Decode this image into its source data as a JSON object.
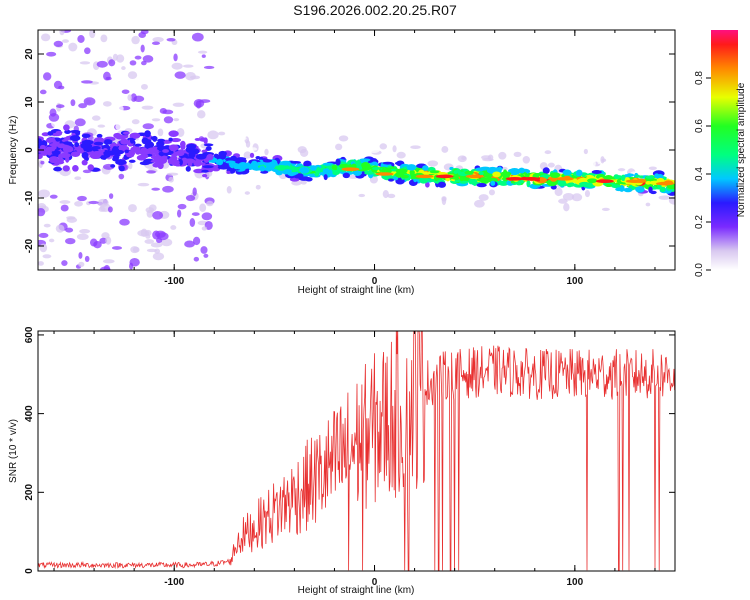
{
  "title": "S196.2026.002.20.25.R07",
  "chart_data": [
    {
      "type": "heatmap",
      "xlabel": "Height of straight line (km)",
      "ylabel": "Frequency (Hz)",
      "xlim": [
        -168,
        150
      ],
      "ylim": [
        -25,
        25
      ],
      "xticks": [
        -100,
        0,
        100
      ],
      "yticks": [
        -20,
        -10,
        0,
        10,
        20
      ],
      "description_series": {
        "name": "Doppler ridge center (Hz)",
        "x": [
          -165,
          -140,
          -120,
          -100,
          -85,
          -70,
          -50,
          -30,
          -15,
          -5,
          5,
          20,
          40,
          60,
          80,
          100,
          120,
          150
        ],
        "y": [
          0.5,
          0,
          0,
          -0.5,
          -1.5,
          -3,
          -3.5,
          -4.5,
          -3.5,
          -3.5,
          -4.5,
          -5,
          -5.5,
          -5.5,
          -6,
          -6,
          -6.5,
          -7
        ]
      },
      "colorbar": {
        "label": "Normalized spectral amplitude",
        "range": [
          0,
          1
        ],
        "ticks": [
          "0.0",
          "0.2",
          "0.4",
          "0.6",
          "0.8"
        ]
      }
    },
    {
      "type": "line",
      "xlabel": "Height of straight line (km)",
      "ylabel": "SNR (10 * v/v)",
      "xlim": [
        -168,
        150
      ],
      "ylim": [
        0,
        610
      ],
      "xticks": [
        -100,
        0,
        100
      ],
      "yticks": [
        0,
        200,
        400,
        600
      ],
      "series": [
        {
          "name": "SNR",
          "x": [
            -168,
            -140,
            -110,
            -90,
            -80,
            -72,
            -68,
            -60,
            -50,
            -40,
            -30,
            -20,
            -10,
            0,
            10,
            20,
            25,
            30,
            40,
            50,
            60,
            80,
            100,
            120,
            140,
            150
          ],
          "y": [
            15,
            15,
            15,
            15,
            18,
            25,
            80,
            110,
            150,
            190,
            230,
            270,
            320,
            360,
            400,
            440,
            470,
            490,
            500,
            505,
            510,
            500,
            500,
            500,
            500,
            500
          ]
        }
      ],
      "dropouts_x": [
        -13,
        -6,
        15,
        17,
        30,
        32,
        34,
        38,
        40,
        42,
        106,
        122,
        124,
        127,
        140,
        142
      ]
    }
  ],
  "colors": {
    "snr_line": "#e83030",
    "axis": "#000000"
  }
}
